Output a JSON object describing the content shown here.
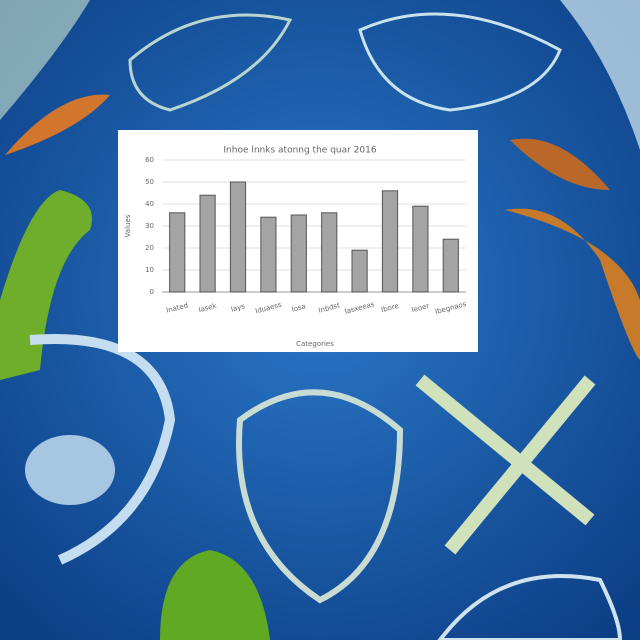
{
  "chart_data": {
    "type": "bar",
    "title": "Inhoe lnnks atonng the quar 2016",
    "xlabel": "Categories",
    "ylabel": "Values",
    "categories": [
      "lnated",
      "Iasek",
      "lays",
      "Iduaess",
      "Iosa",
      "Inbdst",
      "lasxeeas",
      "Ibore",
      "Ieoer",
      "Ibegnaos"
    ],
    "values": [
      36,
      44,
      50,
      34,
      35,
      36,
      19,
      46,
      39,
      24
    ],
    "color": "#a4a4a4",
    "ylim": [
      0,
      60
    ],
    "yticks": [
      0,
      10,
      20,
      30,
      40,
      50,
      60
    ],
    "grid": true
  }
}
